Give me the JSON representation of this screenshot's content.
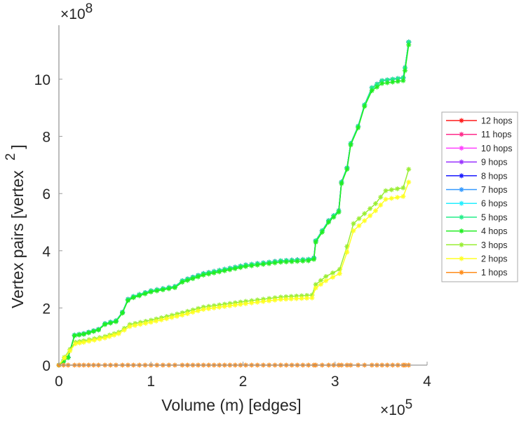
{
  "chart_data": {
    "type": "line",
    "title": "",
    "xlabel": "Volume (m) [edges]",
    "ylabel": "Vertex pairs [vertex",
    "ylabel_sup": "2",
    "ylabel_end": "]",
    "x_exponent": "×10",
    "x_exponent_power": "5",
    "y_exponent": "×10",
    "y_exponent_power": "8",
    "xlim": [
      0,
      4
    ],
    "ylim": [
      0,
      12
    ],
    "xticks": [
      "0",
      "1",
      "2",
      "3",
      "4"
    ],
    "yticks": [
      "0",
      "2",
      "4",
      "6",
      "8",
      "10"
    ],
    "grid": false,
    "legend_placement": "outside-right",
    "units_note": "x in 1e5, y in 1e8",
    "upper_x": [
      0,
      0.1,
      0.17,
      0.27,
      0.43,
      0.5,
      0.62,
      0.69,
      0.75,
      0.81,
      1.0,
      1.26,
      1.34,
      1.57,
      1.8,
      2.03,
      2.41,
      2.71,
      2.77,
      2.79,
      2.86,
      2.93,
      3.04,
      3.07,
      3.13,
      3.17,
      3.25,
      3.32,
      3.4,
      3.51,
      3.74,
      3.76,
      3.8
    ],
    "lower_x": [
      0,
      0.12,
      0.18,
      0.27,
      0.5,
      0.65,
      0.77,
      1.0,
      1.34,
      1.57,
      2.03,
      2.41,
      2.75,
      2.79,
      2.9,
      3.05,
      3.13,
      3.2,
      3.32,
      3.44,
      3.55,
      3.74,
      3.8
    ],
    "series": [
      {
        "name": "12 hops",
        "color": "#ff1a1a",
        "xref": "upper",
        "values": [
          0,
          0.27,
          1.05,
          1.1,
          1.25,
          1.45,
          1.55,
          1.85,
          2.3,
          2.4,
          2.6,
          2.75,
          2.95,
          3.2,
          3.35,
          3.5,
          3.65,
          3.7,
          3.75,
          4.35,
          4.7,
          5.05,
          5.4,
          6.4,
          6.9,
          7.75,
          8.35,
          9.1,
          9.7,
          9.95,
          10.05,
          10.4,
          11.3
        ]
      },
      {
        "name": "11 hops",
        "color": "#ff2a8a",
        "xref": "upper",
        "values": [
          0,
          0.27,
          1.05,
          1.1,
          1.25,
          1.45,
          1.55,
          1.85,
          2.3,
          2.4,
          2.6,
          2.75,
          2.95,
          3.2,
          3.35,
          3.5,
          3.65,
          3.7,
          3.75,
          4.35,
          4.7,
          5.05,
          5.4,
          6.4,
          6.9,
          7.75,
          8.35,
          9.1,
          9.7,
          9.95,
          10.05,
          10.4,
          11.3
        ]
      },
      {
        "name": "10 hops",
        "color": "#ff40ff",
        "xref": "upper",
        "values": [
          0,
          0.27,
          1.05,
          1.1,
          1.25,
          1.45,
          1.55,
          1.85,
          2.3,
          2.4,
          2.6,
          2.75,
          2.95,
          3.2,
          3.35,
          3.5,
          3.65,
          3.7,
          3.75,
          4.35,
          4.7,
          5.05,
          5.4,
          6.4,
          6.9,
          7.75,
          8.35,
          9.1,
          9.7,
          9.95,
          10.05,
          10.4,
          11.3
        ]
      },
      {
        "name": "9 hops",
        "color": "#9933ff",
        "xref": "upper",
        "values": [
          0,
          0.27,
          1.05,
          1.1,
          1.25,
          1.45,
          1.55,
          1.85,
          2.3,
          2.4,
          2.6,
          2.75,
          2.95,
          3.2,
          3.35,
          3.5,
          3.65,
          3.7,
          3.75,
          4.35,
          4.7,
          5.05,
          5.4,
          6.4,
          6.9,
          7.75,
          8.35,
          9.1,
          9.7,
          9.95,
          10.05,
          10.4,
          11.3
        ]
      },
      {
        "name": "8 hops",
        "color": "#1a1aff",
        "xref": "upper",
        "values": [
          0,
          0.27,
          1.05,
          1.1,
          1.25,
          1.45,
          1.55,
          1.85,
          2.3,
          2.4,
          2.6,
          2.75,
          2.95,
          3.2,
          3.35,
          3.5,
          3.65,
          3.7,
          3.75,
          4.35,
          4.7,
          5.05,
          5.4,
          6.4,
          6.9,
          7.75,
          8.35,
          9.1,
          9.7,
          9.95,
          10.05,
          10.4,
          11.3
        ]
      },
      {
        "name": "7 hops",
        "color": "#3399ff",
        "xref": "upper",
        "values": [
          0,
          0.27,
          1.05,
          1.1,
          1.25,
          1.45,
          1.55,
          1.85,
          2.3,
          2.4,
          2.6,
          2.75,
          2.95,
          3.2,
          3.35,
          3.5,
          3.65,
          3.7,
          3.75,
          4.35,
          4.7,
          5.05,
          5.4,
          6.4,
          6.9,
          7.75,
          8.35,
          9.1,
          9.7,
          9.95,
          10.05,
          10.4,
          11.3
        ]
      },
      {
        "name": "6 hops",
        "color": "#22eeff",
        "xref": "upper",
        "values": [
          0,
          0.27,
          1.05,
          1.1,
          1.25,
          1.45,
          1.55,
          1.85,
          2.3,
          2.4,
          2.6,
          2.75,
          2.95,
          3.2,
          3.35,
          3.5,
          3.65,
          3.7,
          3.75,
          4.35,
          4.7,
          5.05,
          5.4,
          6.4,
          6.9,
          7.75,
          8.35,
          9.1,
          9.7,
          9.95,
          10.05,
          10.4,
          11.3
        ]
      },
      {
        "name": "5 hops",
        "color": "#22ee88",
        "xref": "upper",
        "values": [
          0,
          0.27,
          1.05,
          1.1,
          1.25,
          1.45,
          1.55,
          1.85,
          2.3,
          2.4,
          2.6,
          2.75,
          2.95,
          3.2,
          3.35,
          3.5,
          3.65,
          3.7,
          3.75,
          4.35,
          4.7,
          5.05,
          5.4,
          6.4,
          6.9,
          7.75,
          8.35,
          9.1,
          9.7,
          9.95,
          10.05,
          10.4,
          11.3
        ]
      },
      {
        "name": "4 hops",
        "color": "#22ee22",
        "xref": "upper",
        "values": [
          0,
          0.26,
          1.03,
          1.08,
          1.23,
          1.42,
          1.52,
          1.82,
          2.26,
          2.36,
          2.56,
          2.71,
          2.9,
          3.15,
          3.3,
          3.45,
          3.6,
          3.65,
          3.7,
          4.3,
          4.65,
          5.0,
          5.35,
          6.35,
          6.85,
          7.7,
          8.3,
          9.05,
          9.6,
          9.85,
          9.95,
          10.3,
          11.2
        ]
      },
      {
        "name": "3 hops",
        "color": "#99ee33",
        "xref": "lower",
        "values": [
          0,
          0.55,
          0.8,
          0.85,
          1.0,
          1.15,
          1.42,
          1.57,
          1.83,
          2.03,
          2.23,
          2.38,
          2.45,
          2.82,
          3.1,
          3.35,
          4.15,
          4.95,
          5.3,
          5.65,
          6.1,
          6.2,
          6.85
        ]
      },
      {
        "name": "2 hops",
        "color": "#ffff22",
        "xref": "lower",
        "values": [
          0,
          0.5,
          0.75,
          0.8,
          0.95,
          1.1,
          1.35,
          1.5,
          1.75,
          1.95,
          2.15,
          2.3,
          2.35,
          2.7,
          2.95,
          3.2,
          3.95,
          4.7,
          5.05,
          5.4,
          5.8,
          5.9,
          6.4
        ]
      },
      {
        "name": "1 hops",
        "color": "#ff8c1a",
        "xref": "upper",
        "values": [
          0,
          0,
          0,
          0,
          0,
          0,
          0,
          0,
          0,
          0,
          0,
          0,
          0,
          0,
          0,
          0,
          0,
          0,
          0,
          0,
          0,
          0,
          0,
          0,
          0,
          0,
          0,
          0,
          0,
          0,
          0,
          0,
          0
        ]
      }
    ]
  }
}
